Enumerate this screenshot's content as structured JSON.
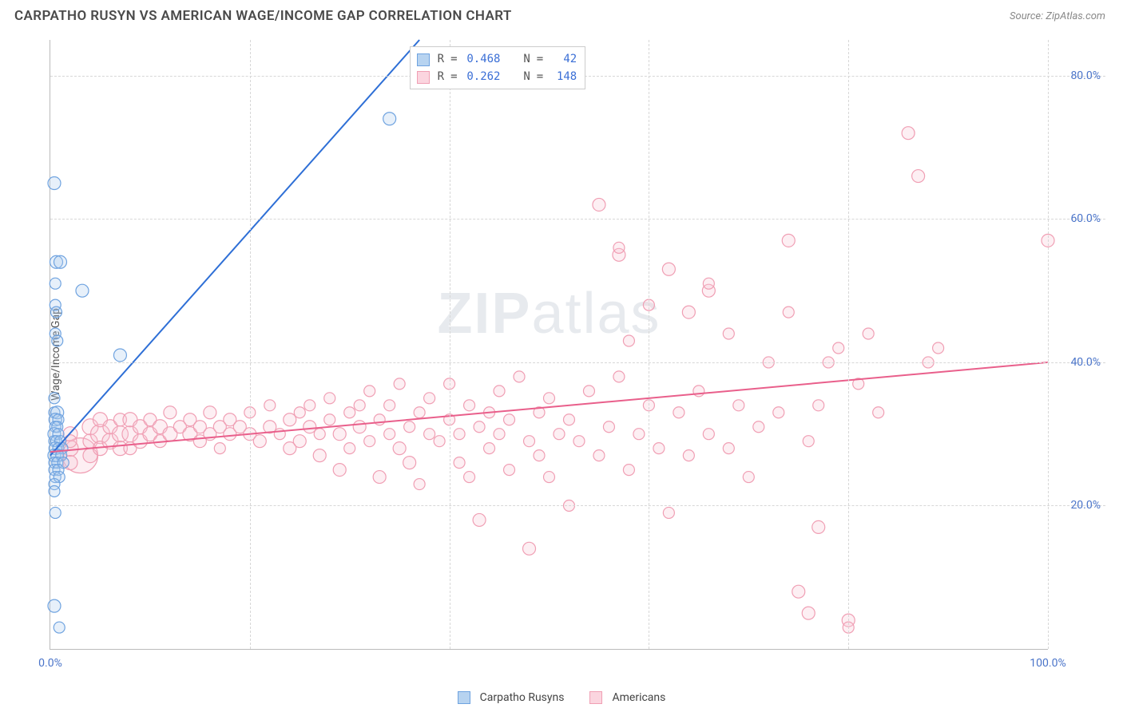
{
  "title": "CARPATHO RUSYN VS AMERICAN WAGE/INCOME GAP CORRELATION CHART",
  "source_label": "Source: ZipAtlas.com",
  "ylabel": "Wage/Income Gap",
  "watermark": {
    "bold_part": "ZIP",
    "rest": "atlas"
  },
  "chart": {
    "type": "scatter",
    "xlim": [
      0,
      100
    ],
    "ylim": [
      0,
      85
    ],
    "x_ticks": [
      0,
      20,
      40,
      60,
      80,
      100
    ],
    "y_ticks": [
      20,
      40,
      60,
      80
    ],
    "x_tick_labels_shown": {
      "0": "0.0%",
      "100": "100.0%"
    },
    "y_tick_labels": {
      "20": "20.0%",
      "40": "40.0%",
      "60": "60.0%",
      "80": "80.0%"
    },
    "grid_color": "#d7d7d7",
    "axis_color": "#bbbbbb",
    "tick_label_color": "#4a74c9",
    "background_color": "#ffffff",
    "marker_stroke_width": 1.2,
    "marker_fill_opacity": 0.28,
    "default_marker_radius": 8,
    "series": [
      {
        "name": "Carpatho Rusyns",
        "color_stroke": "#6fa3e0",
        "color_fill": "#a9c9ec",
        "swatch_border": "#6fa3e0",
        "swatch_fill": "#b7d3f0",
        "trend": {
          "x1": 0,
          "y1": 27,
          "x2": 37,
          "y2": 85,
          "color": "#2e6fd6",
          "width": 2
        },
        "correlation": {
          "R": "0.468",
          "N": "42"
        },
        "points": [
          {
            "x": 0.4,
            "y": 65,
            "r": 8
          },
          {
            "x": 0.6,
            "y": 54,
            "r": 8
          },
          {
            "x": 1.0,
            "y": 54,
            "r": 8
          },
          {
            "x": 0.5,
            "y": 51,
            "r": 7
          },
          {
            "x": 3.2,
            "y": 50,
            "r": 8
          },
          {
            "x": 0.5,
            "y": 48,
            "r": 7
          },
          {
            "x": 0.6,
            "y": 47,
            "r": 7
          },
          {
            "x": 0.5,
            "y": 44,
            "r": 7
          },
          {
            "x": 0.7,
            "y": 43,
            "r": 7
          },
          {
            "x": 7,
            "y": 41,
            "r": 8
          },
          {
            "x": 0.4,
            "y": 35,
            "r": 7
          },
          {
            "x": 0.4,
            "y": 33,
            "r": 7
          },
          {
            "x": 0.7,
            "y": 33,
            "r": 8
          },
          {
            "x": 0.5,
            "y": 32,
            "r": 8
          },
          {
            "x": 0.8,
            "y": 32,
            "r": 7
          },
          {
            "x": 0.5,
            "y": 31,
            "r": 7
          },
          {
            "x": 0.7,
            "y": 31,
            "r": 7
          },
          {
            "x": 0.4,
            "y": 30,
            "r": 8
          },
          {
            "x": 0.8,
            "y": 30,
            "r": 7
          },
          {
            "x": 0.4,
            "y": 29,
            "r": 7
          },
          {
            "x": 0.6,
            "y": 29,
            "r": 7
          },
          {
            "x": 1.0,
            "y": 29,
            "r": 7
          },
          {
            "x": 0.5,
            "y": 28,
            "r": 8
          },
          {
            "x": 0.8,
            "y": 28,
            "r": 7
          },
          {
            "x": 1.2,
            "y": 28,
            "r": 7
          },
          {
            "x": 0.4,
            "y": 27,
            "r": 8
          },
          {
            "x": 0.7,
            "y": 27,
            "r": 8
          },
          {
            "x": 1.1,
            "y": 27,
            "r": 7
          },
          {
            "x": 0.4,
            "y": 26,
            "r": 7
          },
          {
            "x": 0.7,
            "y": 26,
            "r": 7
          },
          {
            "x": 1.3,
            "y": 26,
            "r": 7
          },
          {
            "x": 0.4,
            "y": 25,
            "r": 7
          },
          {
            "x": 0.8,
            "y": 25,
            "r": 7
          },
          {
            "x": 0.5,
            "y": 24,
            "r": 7
          },
          {
            "x": 0.9,
            "y": 24,
            "r": 7
          },
          {
            "x": 0.4,
            "y": 23,
            "r": 7
          },
          {
            "x": 0.4,
            "y": 22,
            "r": 7
          },
          {
            "x": 0.5,
            "y": 19,
            "r": 7
          },
          {
            "x": 0.4,
            "y": 6,
            "r": 8
          },
          {
            "x": 0.9,
            "y": 3,
            "r": 7
          },
          {
            "x": 34,
            "y": 74,
            "r": 8
          }
        ]
      },
      {
        "name": "Americans",
        "color_stroke": "#f09fb4",
        "color_fill": "#f8c6d3",
        "swatch_border": "#f09fb4",
        "swatch_fill": "#fbd5df",
        "trend": {
          "x1": 0,
          "y1": 27.5,
          "x2": 100,
          "y2": 40,
          "color": "#e95f8b",
          "width": 2
        },
        "correlation": {
          "R": "0.262",
          "N": "148"
        },
        "points": [
          {
            "x": 3,
            "y": 27,
            "r": 22
          },
          {
            "x": 2,
            "y": 28,
            "r": 10
          },
          {
            "x": 2,
            "y": 30,
            "r": 9
          },
          {
            "x": 2,
            "y": 26,
            "r": 9
          },
          {
            "x": 2,
            "y": 29,
            "r": 8
          },
          {
            "x": 4,
            "y": 29,
            "r": 9
          },
          {
            "x": 4,
            "y": 31,
            "r": 10
          },
          {
            "x": 4,
            "y": 27,
            "r": 9
          },
          {
            "x": 5,
            "y": 30,
            "r": 12
          },
          {
            "x": 5,
            "y": 28,
            "r": 9
          },
          {
            "x": 5,
            "y": 32,
            "r": 9
          },
          {
            "x": 6,
            "y": 29,
            "r": 10
          },
          {
            "x": 6,
            "y": 31,
            "r": 9
          },
          {
            "x": 7,
            "y": 30,
            "r": 10
          },
          {
            "x": 7,
            "y": 28,
            "r": 9
          },
          {
            "x": 7,
            "y": 32,
            "r": 8
          },
          {
            "x": 8,
            "y": 30,
            "r": 10
          },
          {
            "x": 8,
            "y": 32,
            "r": 9
          },
          {
            "x": 8,
            "y": 28,
            "r": 8
          },
          {
            "x": 9,
            "y": 31,
            "r": 9
          },
          {
            "x": 9,
            "y": 29,
            "r": 9
          },
          {
            "x": 10,
            "y": 30,
            "r": 9
          },
          {
            "x": 10,
            "y": 32,
            "r": 8
          },
          {
            "x": 11,
            "y": 31,
            "r": 9
          },
          {
            "x": 11,
            "y": 29,
            "r": 8
          },
          {
            "x": 12,
            "y": 30,
            "r": 9
          },
          {
            "x": 12,
            "y": 33,
            "r": 8
          },
          {
            "x": 13,
            "y": 31,
            "r": 8
          },
          {
            "x": 14,
            "y": 30,
            "r": 9
          },
          {
            "x": 14,
            "y": 32,
            "r": 8
          },
          {
            "x": 15,
            "y": 31,
            "r": 8
          },
          {
            "x": 15,
            "y": 29,
            "r": 8
          },
          {
            "x": 16,
            "y": 30,
            "r": 8
          },
          {
            "x": 16,
            "y": 33,
            "r": 8
          },
          {
            "x": 17,
            "y": 31,
            "r": 8
          },
          {
            "x": 17,
            "y": 28,
            "r": 7
          },
          {
            "x": 18,
            "y": 30,
            "r": 8
          },
          {
            "x": 18,
            "y": 32,
            "r": 8
          },
          {
            "x": 19,
            "y": 31,
            "r": 8
          },
          {
            "x": 20,
            "y": 30,
            "r": 8
          },
          {
            "x": 20,
            "y": 33,
            "r": 7
          },
          {
            "x": 21,
            "y": 29,
            "r": 8
          },
          {
            "x": 22,
            "y": 31,
            "r": 8
          },
          {
            "x": 22,
            "y": 34,
            "r": 7
          },
          {
            "x": 23,
            "y": 30,
            "r": 7
          },
          {
            "x": 24,
            "y": 32,
            "r": 8
          },
          {
            "x": 24,
            "y": 28,
            "r": 8
          },
          {
            "x": 25,
            "y": 33,
            "r": 7
          },
          {
            "x": 25,
            "y": 29,
            "r": 8
          },
          {
            "x": 26,
            "y": 31,
            "r": 8
          },
          {
            "x": 26,
            "y": 34,
            "r": 7
          },
          {
            "x": 27,
            "y": 30,
            "r": 7
          },
          {
            "x": 27,
            "y": 27,
            "r": 8
          },
          {
            "x": 28,
            "y": 32,
            "r": 7
          },
          {
            "x": 28,
            "y": 35,
            "r": 7
          },
          {
            "x": 29,
            "y": 30,
            "r": 8
          },
          {
            "x": 29,
            "y": 25,
            "r": 8
          },
          {
            "x": 30,
            "y": 33,
            "r": 7
          },
          {
            "x": 30,
            "y": 28,
            "r": 7
          },
          {
            "x": 31,
            "y": 34,
            "r": 7
          },
          {
            "x": 31,
            "y": 31,
            "r": 8
          },
          {
            "x": 32,
            "y": 29,
            "r": 7
          },
          {
            "x": 32,
            "y": 36,
            "r": 7
          },
          {
            "x": 33,
            "y": 32,
            "r": 7
          },
          {
            "x": 33,
            "y": 24,
            "r": 8
          },
          {
            "x": 34,
            "y": 30,
            "r": 7
          },
          {
            "x": 34,
            "y": 34,
            "r": 7
          },
          {
            "x": 35,
            "y": 28,
            "r": 8
          },
          {
            "x": 35,
            "y": 37,
            "r": 7
          },
          {
            "x": 36,
            "y": 31,
            "r": 7
          },
          {
            "x": 36,
            "y": 26,
            "r": 8
          },
          {
            "x": 37,
            "y": 33,
            "r": 7
          },
          {
            "x": 37,
            "y": 23,
            "r": 7
          },
          {
            "x": 38,
            "y": 30,
            "r": 7
          },
          {
            "x": 38,
            "y": 35,
            "r": 7
          },
          {
            "x": 39,
            "y": 29,
            "r": 7
          },
          {
            "x": 40,
            "y": 32,
            "r": 7
          },
          {
            "x": 40,
            "y": 37,
            "r": 7
          },
          {
            "x": 41,
            "y": 26,
            "r": 7
          },
          {
            "x": 41,
            "y": 30,
            "r": 7
          },
          {
            "x": 42,
            "y": 34,
            "r": 7
          },
          {
            "x": 42,
            "y": 24,
            "r": 7
          },
          {
            "x": 43,
            "y": 31,
            "r": 7
          },
          {
            "x": 43,
            "y": 18,
            "r": 8
          },
          {
            "x": 44,
            "y": 33,
            "r": 7
          },
          {
            "x": 44,
            "y": 28,
            "r": 7
          },
          {
            "x": 45,
            "y": 30,
            "r": 7
          },
          {
            "x": 45,
            "y": 36,
            "r": 7
          },
          {
            "x": 46,
            "y": 25,
            "r": 7
          },
          {
            "x": 46,
            "y": 32,
            "r": 7
          },
          {
            "x": 47,
            "y": 38,
            "r": 7
          },
          {
            "x": 48,
            "y": 29,
            "r": 7
          },
          {
            "x": 48,
            "y": 14,
            "r": 8
          },
          {
            "x": 49,
            "y": 33,
            "r": 7
          },
          {
            "x": 49,
            "y": 27,
            "r": 7
          },
          {
            "x": 50,
            "y": 24,
            "r": 7
          },
          {
            "x": 50,
            "y": 35,
            "r": 7
          },
          {
            "x": 51,
            "y": 30,
            "r": 7
          },
          {
            "x": 52,
            "y": 32,
            "r": 7
          },
          {
            "x": 52,
            "y": 20,
            "r": 7
          },
          {
            "x": 53,
            "y": 29,
            "r": 7
          },
          {
            "x": 54,
            "y": 36,
            "r": 7
          },
          {
            "x": 55,
            "y": 27,
            "r": 7
          },
          {
            "x": 55,
            "y": 62,
            "r": 8
          },
          {
            "x": 56,
            "y": 31,
            "r": 7
          },
          {
            "x": 57,
            "y": 38,
            "r": 7
          },
          {
            "x": 57,
            "y": 55,
            "r": 8
          },
          {
            "x": 57,
            "y": 56,
            "r": 7
          },
          {
            "x": 58,
            "y": 25,
            "r": 7
          },
          {
            "x": 58,
            "y": 43,
            "r": 7
          },
          {
            "x": 59,
            "y": 30,
            "r": 7
          },
          {
            "x": 60,
            "y": 34,
            "r": 7
          },
          {
            "x": 60,
            "y": 48,
            "r": 7
          },
          {
            "x": 61,
            "y": 28,
            "r": 7
          },
          {
            "x": 62,
            "y": 53,
            "r": 8
          },
          {
            "x": 62,
            "y": 19,
            "r": 7
          },
          {
            "x": 63,
            "y": 33,
            "r": 7
          },
          {
            "x": 64,
            "y": 27,
            "r": 7
          },
          {
            "x": 64,
            "y": 47,
            "r": 8
          },
          {
            "x": 65,
            "y": 36,
            "r": 7
          },
          {
            "x": 66,
            "y": 30,
            "r": 7
          },
          {
            "x": 66,
            "y": 50,
            "r": 8
          },
          {
            "x": 66,
            "y": 51,
            "r": 7
          },
          {
            "x": 68,
            "y": 28,
            "r": 7
          },
          {
            "x": 68,
            "y": 44,
            "r": 7
          },
          {
            "x": 69,
            "y": 34,
            "r": 7
          },
          {
            "x": 70,
            "y": 24,
            "r": 7
          },
          {
            "x": 71,
            "y": 31,
            "r": 7
          },
          {
            "x": 72,
            "y": 40,
            "r": 7
          },
          {
            "x": 73,
            "y": 33,
            "r": 7
          },
          {
            "x": 74,
            "y": 47,
            "r": 7
          },
          {
            "x": 74,
            "y": 57,
            "r": 8
          },
          {
            "x": 75,
            "y": 8,
            "r": 8
          },
          {
            "x": 76,
            "y": 5,
            "r": 8
          },
          {
            "x": 76,
            "y": 29,
            "r": 7
          },
          {
            "x": 77,
            "y": 34,
            "r": 7
          },
          {
            "x": 77,
            "y": 17,
            "r": 8
          },
          {
            "x": 78,
            "y": 40,
            "r": 7
          },
          {
            "x": 79,
            "y": 42,
            "r": 7
          },
          {
            "x": 80,
            "y": 4,
            "r": 8
          },
          {
            "x": 80,
            "y": 3,
            "r": 7
          },
          {
            "x": 81,
            "y": 37,
            "r": 7
          },
          {
            "x": 82,
            "y": 44,
            "r": 7
          },
          {
            "x": 83,
            "y": 33,
            "r": 7
          },
          {
            "x": 86,
            "y": 72,
            "r": 8
          },
          {
            "x": 87,
            "y": 66,
            "r": 8
          },
          {
            "x": 88,
            "y": 40,
            "r": 7
          },
          {
            "x": 89,
            "y": 42,
            "r": 7
          },
          {
            "x": 100,
            "y": 57,
            "r": 8
          }
        ]
      }
    ]
  },
  "legend_top": {
    "r_label": "R",
    "n_label": "N",
    "eq": "="
  },
  "legend_bottom_labels": [
    "Carpatho Rusyns",
    "Americans"
  ]
}
